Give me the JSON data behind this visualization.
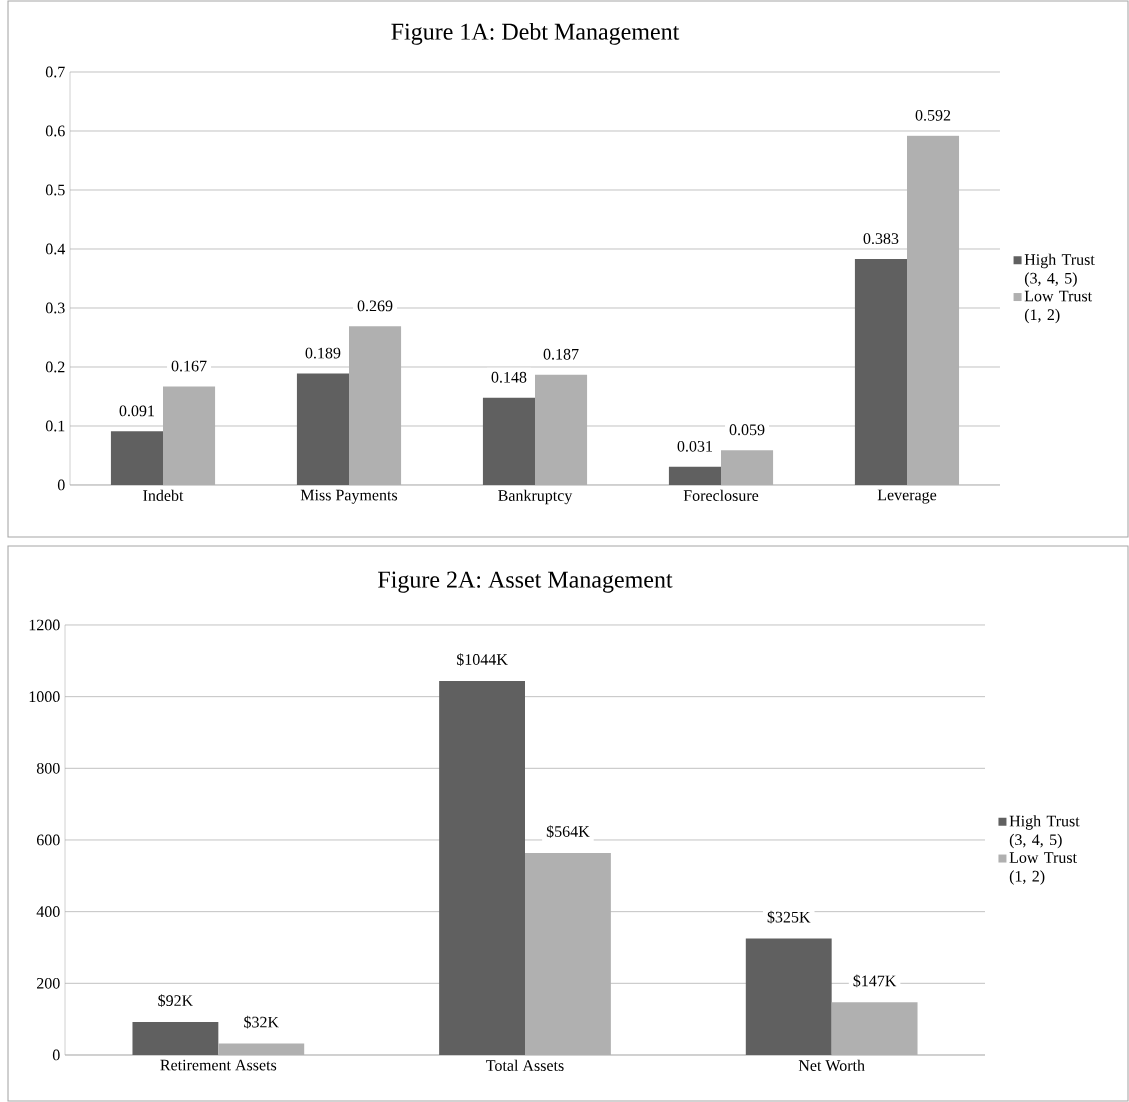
{
  "chart_data": [
    {
      "type": "bar",
      "title": "Figure 1A: Debt Management",
      "categories": [
        "Indebt",
        "Miss Payments",
        "Bankruptcy",
        "Foreclosure",
        "Leverage"
      ],
      "series": [
        {
          "name": "High Trust (3, 4, 5)",
          "color": "#606060",
          "values": [
            0.091,
            0.189,
            0.148,
            0.031,
            0.383
          ]
        },
        {
          "name": "Low Trust (1, 2)",
          "color": "#b0b0b0",
          "values": [
            0.167,
            0.269,
            0.187,
            0.059,
            0.592
          ]
        }
      ],
      "ylim": [
        0,
        0.7
      ],
      "yticks": [
        0,
        0.1,
        0.2,
        0.3,
        0.4,
        0.5,
        0.6,
        0.7
      ],
      "grid": "y",
      "legend": "right",
      "data_labels": true
    },
    {
      "type": "bar",
      "title": "Figure 2A: Asset Management",
      "categories": [
        "Retirement Assets",
        "Total Assets",
        "Net Worth"
      ],
      "series": [
        {
          "name": "High Trust (3, 4, 5)",
          "color": "#606060",
          "values": [
            92,
            1044,
            325
          ],
          "value_labels": [
            "$92K",
            "$1044K",
            "$325K"
          ]
        },
        {
          "name": "Low Trust (1, 2)",
          "color": "#b0b0b0",
          "values": [
            32,
            564,
            147
          ],
          "value_labels": [
            "$32K",
            "$564K",
            "$147K"
          ]
        }
      ],
      "ylim": [
        0,
        1200
      ],
      "yticks": [
        0,
        200,
        400,
        600,
        800,
        1000,
        1200
      ],
      "grid": "y",
      "legend": "right"
    }
  ]
}
